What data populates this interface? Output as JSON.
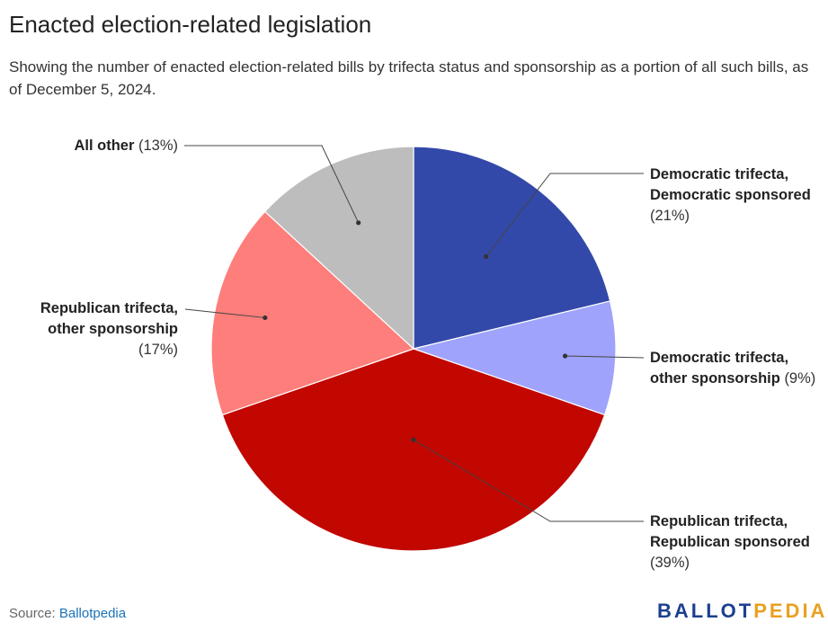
{
  "header": {
    "title": "Enacted election-related legislation",
    "subtitle": "Showing the number of enacted election-related bills by trifecta status and sponsorship as a portion of all such bills, as of December 5, 2024."
  },
  "chart_data": {
    "type": "pie",
    "start_angle_deg": 0,
    "direction": "clockwise",
    "slices": [
      {
        "key": "dem_dem",
        "name_lines": [
          "Democratic trifecta,",
          "Democratic sponsored"
        ],
        "pct_text": "(21%)",
        "value": 21,
        "color": "#3349a9"
      },
      {
        "key": "dem_other",
        "name_lines": [
          "Democratic trifecta,",
          "other sponsorship"
        ],
        "pct_text": "(9%)",
        "value": 9,
        "color": "#9fa3fb"
      },
      {
        "key": "rep_rep",
        "name_lines": [
          "Republican trifecta,",
          "Republican sponsored"
        ],
        "pct_text": "(39%)",
        "value": 39,
        "color": "#c20600"
      },
      {
        "key": "rep_other",
        "name_lines": [
          "Republican trifecta,",
          "other sponsorship"
        ],
        "pct_text": "(17%)",
        "value": 17,
        "color": "#fe7e7b"
      },
      {
        "key": "all_other",
        "name_lines": [
          "All other"
        ],
        "pct_text": "(13%)",
        "value": 13,
        "color": "#bdbdbd"
      }
    ]
  },
  "footer": {
    "source_prefix": "Source: ",
    "source_link": "Ballotpedia",
    "logo_part_a": "BALLOT",
    "logo_part_b": "PEDIA"
  }
}
